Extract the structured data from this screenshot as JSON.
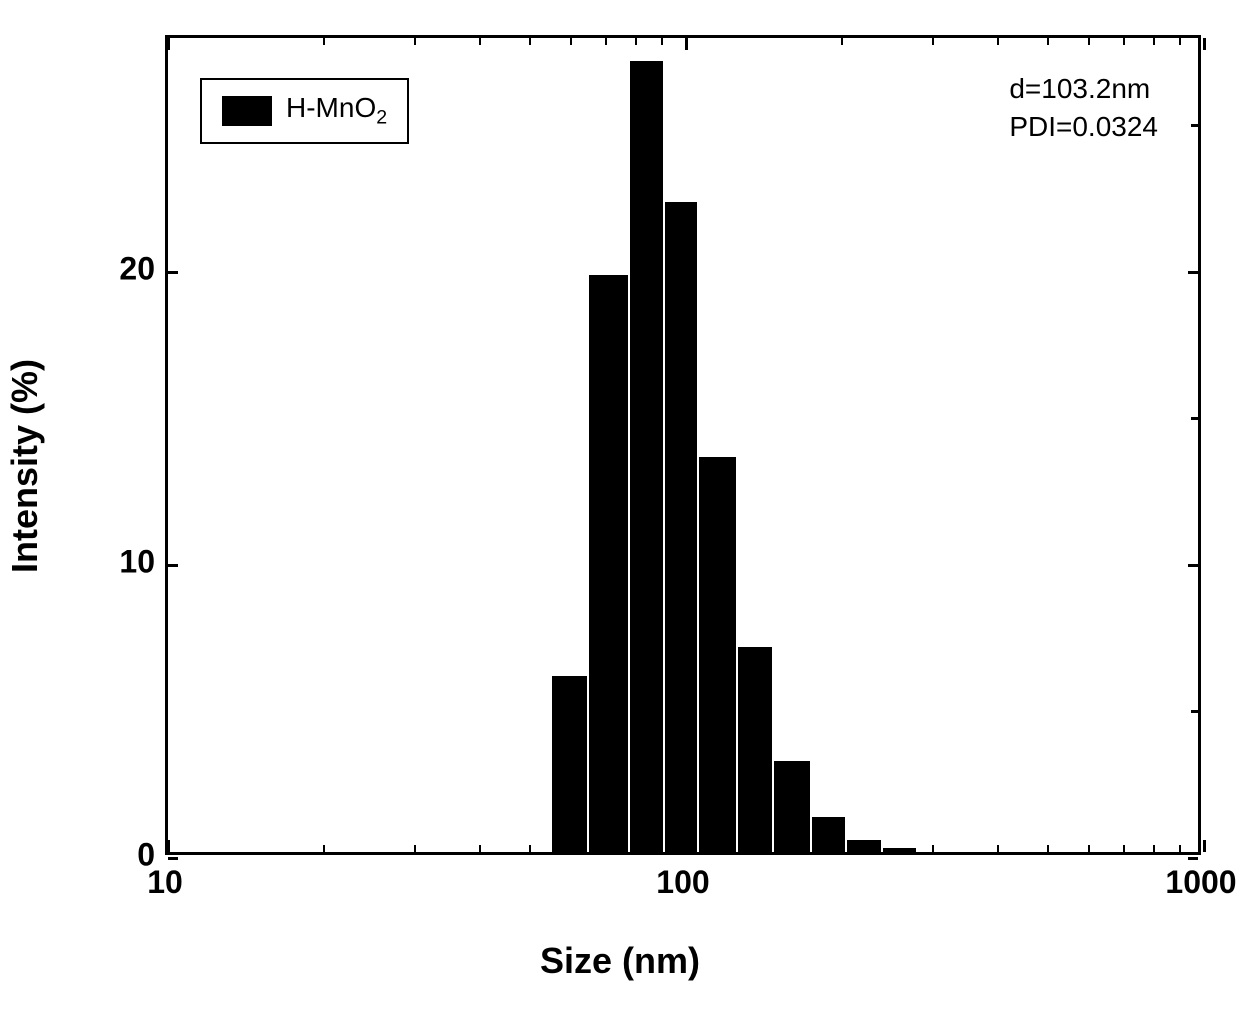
{
  "chart": {
    "type": "histogram",
    "background_color": "#ffffff",
    "border_color": "#000000",
    "bar_color": "#000000",
    "x_scale": "log",
    "xlim": [
      10,
      1000
    ],
    "ylim": [
      0,
      28
    ],
    "x_major_ticks": [
      10,
      100,
      1000
    ],
    "x_minor_ticks": [
      20,
      30,
      40,
      50,
      60,
      70,
      80,
      90,
      200,
      300,
      400,
      500,
      600,
      700,
      800,
      900
    ],
    "y_ticks": [
      0,
      10,
      20
    ],
    "y_minor_ticks": [
      5,
      15,
      25
    ],
    "xlabel": "Size (nm)",
    "ylabel": "Intensity (%)",
    "label_fontsize": 36,
    "label_fontweight": "bold",
    "tick_fontsize": 32,
    "tick_fontweight": "bold",
    "bars": [
      {
        "x_low": 55,
        "x_high": 65,
        "y": 6.0
      },
      {
        "x_low": 65,
        "x_high": 78,
        "y": 19.7
      },
      {
        "x_low": 78,
        "x_high": 91,
        "y": 27.0
      },
      {
        "x_low": 91,
        "x_high": 106,
        "y": 22.2
      },
      {
        "x_low": 106,
        "x_high": 126,
        "y": 13.5
      },
      {
        "x_low": 126,
        "x_high": 148,
        "y": 7.0
      },
      {
        "x_low": 148,
        "x_high": 175,
        "y": 3.1
      },
      {
        "x_low": 175,
        "x_high": 205,
        "y": 1.2
      },
      {
        "x_low": 205,
        "x_high": 240,
        "y": 0.4
      },
      {
        "x_low": 240,
        "x_high": 280,
        "y": 0.15
      }
    ],
    "legend": {
      "label_html": "H-MnO<sub>2</sub>",
      "swatch_color": "#000000",
      "position": "upper-left"
    },
    "annotation": {
      "line1": "d=103.2nm",
      "line2": "PDI=0.0324",
      "position": "upper-right"
    }
  }
}
